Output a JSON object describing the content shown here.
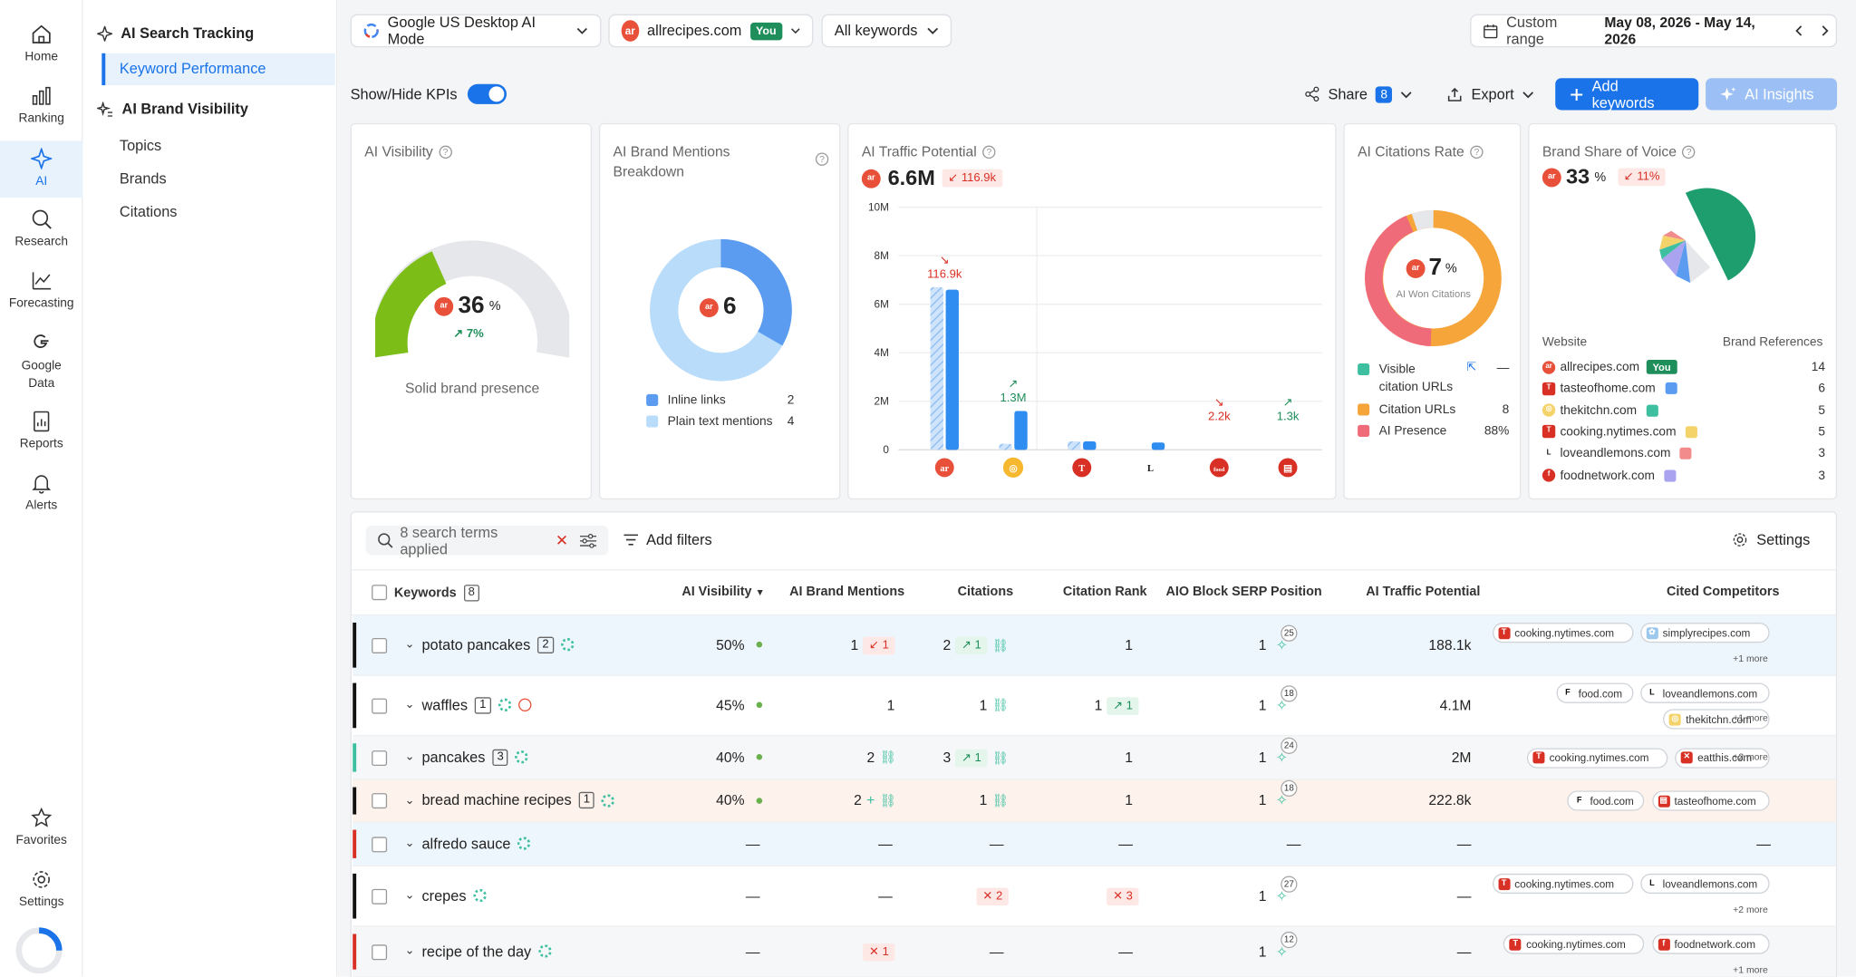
{
  "rail": [
    {
      "label": "Home",
      "icon": "home-icon"
    },
    {
      "label": "Ranking",
      "icon": "bar-chart-icon"
    },
    {
      "label": "AI",
      "icon": "sparkle-icon",
      "active": true
    },
    {
      "label": "Research",
      "icon": "magnifier-icon"
    },
    {
      "label": "Forecasting",
      "icon": "forecast-icon"
    },
    {
      "label": "Google Data",
      "icon": "google-icon"
    },
    {
      "label": "Reports",
      "icon": "report-icon"
    },
    {
      "label": "Alerts",
      "icon": "bell-icon"
    },
    {
      "label": "Favorites",
      "icon": "star-icon"
    },
    {
      "label": "Settings",
      "icon": "gear-icon"
    }
  ],
  "subnav": {
    "search_tracking": "AI Search Tracking",
    "keyword_performance": "Keyword Performance",
    "brand_visibility": "AI Brand Visibility",
    "topics": "Topics",
    "brands": "Brands",
    "citations": "Citations"
  },
  "topbar": {
    "engine": "Google US Desktop AI Mode",
    "domain": "allrecipes.com",
    "you_badge": "You",
    "keywords_filter": "All keywords",
    "range_label": "Custom range",
    "range_value": "May 08, 2026 - May 14, 2026"
  },
  "toolbar": {
    "kpi_toggle": "Show/Hide KPIs",
    "share": "Share",
    "share_count": "8",
    "export": "Export",
    "add_keywords": "Add keywords",
    "ai_insights": "AI Insights"
  },
  "kpi": {
    "visibility": {
      "title": "AI Visibility",
      "value": "36",
      "unit": "%",
      "delta": "7%",
      "caption": "Solid brand presence",
      "fraction": 0.36
    },
    "mentions": {
      "title": "AI Brand Mentions Breakdown",
      "total": "6",
      "legend": [
        {
          "label": "Inline links",
          "value": "2",
          "color": "#5b9cf0"
        },
        {
          "label": "Plain text mentions",
          "value": "4",
          "color": "#b8dcfa"
        }
      ]
    },
    "traffic": {
      "title": "AI Traffic Potential",
      "value": "6.6M",
      "delta": "116.9k"
    },
    "citations_rate": {
      "title": "AI Citations Rate",
      "value": "7",
      "unit": "%",
      "center_caption": "AI Won Citations",
      "legend": [
        {
          "label": "Visible citation URLs",
          "value": "—",
          "color": "#3dbfa0"
        },
        {
          "label": "Citation URLs",
          "value": "8",
          "color": "#f5a53a"
        },
        {
          "label": "AI Presence",
          "value": "88%",
          "color": "#f06b7a"
        }
      ]
    },
    "sov": {
      "title": "Brand Share of Voice",
      "value": "33",
      "unit": "%",
      "delta": "11%",
      "col_website": "Website",
      "col_refs": "Brand References",
      "rows": [
        {
          "site": "allrecipes.com",
          "you": "You",
          "refs": "14",
          "color": "#1e9e6e"
        },
        {
          "site": "tasteofhome.com",
          "refs": "6",
          "color": "#5b9cf0"
        },
        {
          "site": "thekitchn.com",
          "refs": "5",
          "color": "#3dbfa0"
        },
        {
          "site": "cooking.nytimes.com",
          "refs": "5",
          "color": "#f5d36b"
        },
        {
          "site": "loveandlemons.com",
          "refs": "3",
          "color": "#f28b8b"
        },
        {
          "site": "foodnetwork.com",
          "refs": "3",
          "color": "#a9a3f0"
        }
      ]
    }
  },
  "chart_data": {
    "type": "bar",
    "title": "AI Traffic Potential",
    "categories": [
      "allrecipes.com",
      "simplyrecipes.com",
      "cooking.nytimes.com",
      "loveandlemons.com",
      "foodnetwork.com",
      "tasteofhome.com"
    ],
    "yticks": [
      "10M",
      "8M",
      "6M",
      "4M",
      "2M",
      "0"
    ],
    "ylim": [
      0,
      10000000
    ],
    "series": [
      {
        "values": [
          6700000,
          250000,
          350000,
          0,
          0,
          0
        ],
        "style": "hatched"
      },
      {
        "values": [
          6600000,
          1600000,
          350000,
          300000,
          0,
          0
        ],
        "style": "solid"
      }
    ],
    "labels": [
      {
        "text": "116.9k",
        "trend": "down"
      },
      {
        "text": "1.3M",
        "trend": "up"
      },
      {
        "text": "",
        "trend": ""
      },
      {
        "text": "",
        "trend": ""
      },
      {
        "text": "2.2k",
        "trend": "down"
      },
      {
        "text": "1.3k",
        "trend": "up"
      }
    ]
  },
  "table": {
    "search_summary": "8 search terms applied",
    "add_filters": "Add filters",
    "settings": "Settings",
    "headers": {
      "keywords": "Keywords",
      "keywords_count": "8",
      "visibility": "AI Visibility",
      "mentions": "AI Brand Mentions",
      "citations": "Citations",
      "rank": "Citation Rank",
      "serp": "AIO Block SERP Position",
      "traffic": "AI Traffic Potential",
      "competitors": "Cited Competitors"
    },
    "rows": [
      {
        "kw": "potato pancakes",
        "count": "2",
        "vis": "50%",
        "mentions": "1",
        "mentions_badge": "1",
        "citations": "2",
        "cit_badge": "1",
        "rank": "1",
        "serp": "1",
        "serp_badge": "25",
        "traffic": "188.1k",
        "chips": [
          "cooking.nytimes.com",
          "simplyrecipes.com"
        ],
        "more": "+1 more"
      },
      {
        "kw": "waffles",
        "count": "1",
        "vis": "45%",
        "mentions": "1",
        "citations": "1",
        "rank": "1",
        "rank_badge": "1",
        "serp": "1",
        "serp_badge": "18",
        "traffic": "4.1M",
        "chips": [
          "food.com",
          "loveandlemons.com",
          "thekitchn.com"
        ],
        "more": "+1 more"
      },
      {
        "kw": "pancakes",
        "count": "3",
        "vis": "40%",
        "mentions": "2",
        "citations": "3",
        "cit_badge": "1",
        "rank": "1",
        "serp": "1",
        "serp_badge": "24",
        "traffic": "2M",
        "chips": [
          "cooking.nytimes.com",
          "eatthis.com"
        ],
        "more": "+2 more"
      },
      {
        "kw": "bread machine recipes",
        "count": "1",
        "vis": "40%",
        "mentions": "2",
        "citations": "1",
        "rank": "1",
        "serp": "1",
        "serp_badge": "18",
        "traffic": "222.8k",
        "chips": [
          "food.com",
          "tasteofhome.com"
        ]
      },
      {
        "kw": "alfredo sauce",
        "vis": "—",
        "mentions": "—",
        "citations": "—",
        "rank": "—",
        "serp": "—",
        "traffic": "—",
        "comp": "—"
      },
      {
        "kw": "crepes",
        "vis": "—",
        "mentions": "—",
        "citations_x": "2",
        "rank_x": "3",
        "serp": "1",
        "serp_badge": "27",
        "traffic": "—",
        "chips": [
          "cooking.nytimes.com",
          "loveandlemons.com"
        ],
        "more": "+2 more"
      },
      {
        "kw": "recipe of the day",
        "vis": "—",
        "mentions_x": "1",
        "citations": "—",
        "rank": "—",
        "serp": "1",
        "serp_badge": "12",
        "traffic": "—",
        "chips": [
          "cooking.nytimes.com",
          "foodnetwork.com"
        ],
        "more": "+1 more"
      }
    ]
  }
}
